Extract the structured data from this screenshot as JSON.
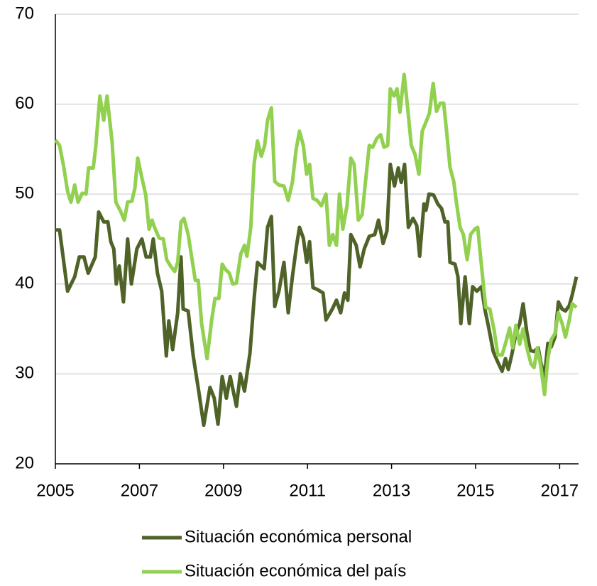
{
  "chart_data": {
    "type": "line",
    "xlim": [
      2005,
      2017.45
    ],
    "xticks": [
      2005,
      2007,
      2009,
      2011,
      2013,
      2015,
      2017
    ],
    "ylim": [
      20,
      70
    ],
    "yticks": [
      20,
      30,
      40,
      50,
      60,
      70
    ],
    "grid": true,
    "series": [
      {
        "name": "Situación económica personal",
        "color": "#4f6228",
        "x": [
          2005.0,
          2005.1,
          2005.29,
          2005.46,
          2005.57,
          2005.68,
          2005.78,
          2005.95,
          2006.03,
          2006.15,
          2006.25,
          2006.32,
          2006.39,
          2006.45,
          2006.52,
          2006.62,
          2006.72,
          2006.81,
          2006.94,
          2007.06,
          2007.16,
          2007.26,
          2007.33,
          2007.43,
          2007.53,
          2007.64,
          2007.7,
          2007.79,
          2007.91,
          2007.99,
          2008.04,
          2008.16,
          2008.28,
          2008.41,
          2008.53,
          2008.68,
          2008.78,
          2008.87,
          2008.97,
          2009.07,
          2009.16,
          2009.31,
          2009.4,
          2009.5,
          2009.63,
          2009.73,
          2009.81,
          2009.97,
          2010.05,
          2010.14,
          2010.22,
          2010.32,
          2010.44,
          2010.54,
          2010.64,
          2010.74,
          2010.81,
          2010.9,
          2010.98,
          2011.05,
          2011.13,
          2011.23,
          2011.37,
          2011.44,
          2011.59,
          2011.69,
          2011.79,
          2011.88,
          2011.96,
          2012.03,
          2012.16,
          2012.25,
          2012.35,
          2012.47,
          2012.6,
          2012.69,
          2012.8,
          2012.89,
          2012.97,
          2013.07,
          2013.16,
          2013.23,
          2013.31,
          2013.4,
          2013.51,
          2013.6,
          2013.67,
          2013.77,
          2013.82,
          2013.89,
          2014.0,
          2014.1,
          2014.19,
          2014.27,
          2014.34,
          2014.39,
          2014.51,
          2014.58,
          2014.65,
          2014.75,
          2014.85,
          2014.93,
          2015.03,
          2015.14,
          2015.22,
          2015.31,
          2015.42,
          2015.51,
          2015.63,
          2015.71,
          2015.78,
          2015.86,
          2015.96,
          2016.05,
          2016.13,
          2016.22,
          2016.3,
          2016.39,
          2016.49,
          2016.55,
          2016.64,
          2016.72,
          2016.8,
          2016.89,
          2016.97,
          2017.06,
          2017.14,
          2017.23,
          2017.3,
          2017.4
        ],
        "values": [
          46,
          46,
          39.2,
          40.8,
          43,
          43,
          41.2,
          43,
          48,
          46.9,
          46.9,
          44.7,
          43.9,
          40,
          42,
          38,
          45,
          40,
          43.9,
          45,
          43,
          43,
          45,
          41.2,
          39.2,
          32,
          35.9,
          32.7,
          36.8,
          43,
          37.2,
          37,
          32,
          28.1,
          24.3,
          28.5,
          27.3,
          24.4,
          29.7,
          27.3,
          29.7,
          26.4,
          30,
          28.1,
          32.3,
          38.4,
          42.4,
          41.7,
          46.3,
          47.5,
          37.5,
          39.2,
          42.4,
          36.8,
          40.8,
          44.3,
          46.3,
          45.1,
          42.4,
          44.7,
          39.6,
          39.4,
          39,
          36,
          37.2,
          38.2,
          36.8,
          39,
          38.2,
          45.5,
          44.3,
          41.9,
          43.9,
          45.3,
          45.5,
          47.1,
          44.5,
          45.9,
          53.3,
          50.9,
          52.9,
          51.3,
          53.3,
          46.3,
          47.3,
          46.5,
          43.1,
          48.9,
          48.2,
          50,
          49.9,
          48.9,
          48.4,
          46.9,
          46.9,
          42.4,
          42.2,
          40.8,
          35.6,
          40.8,
          35.6,
          39.7,
          39.2,
          39.7,
          37.2,
          35.2,
          32.5,
          31.5,
          30.3,
          31.7,
          30.5,
          32.1,
          34.5,
          35.6,
          37.8,
          34.6,
          32.6,
          32.5,
          32.9,
          31.3,
          29.7,
          33.4,
          33,
          34.1,
          38,
          37.2,
          37,
          37.6,
          38.8,
          40.8
        ]
      },
      {
        "name": "Situación económica del país",
        "color": "#92d050",
        "x": [
          2005.0,
          2005.1,
          2005.2,
          2005.29,
          2005.37,
          2005.46,
          2005.54,
          2005.64,
          2005.73,
          2005.79,
          2005.9,
          2005.96,
          2006.06,
          2006.15,
          2006.23,
          2006.35,
          2006.44,
          2006.55,
          2006.64,
          2006.72,
          2006.82,
          2006.89,
          2006.96,
          2007.06,
          2007.15,
          2007.23,
          2007.3,
          2007.36,
          2007.47,
          2007.57,
          2007.65,
          2007.74,
          2007.84,
          2007.91,
          2007.99,
          2008.06,
          2008.16,
          2008.24,
          2008.33,
          2008.4,
          2008.48,
          2008.61,
          2008.72,
          2008.8,
          2008.89,
          2008.97,
          2009.05,
          2009.14,
          2009.22,
          2009.31,
          2009.41,
          2009.5,
          2009.56,
          2009.65,
          2009.73,
          2009.81,
          2009.9,
          2009.98,
          2010.05,
          2010.14,
          2010.22,
          2010.32,
          2010.44,
          2010.54,
          2010.64,
          2010.73,
          2010.81,
          2010.9,
          2010.98,
          2011.05,
          2011.13,
          2011.23,
          2011.33,
          2011.44,
          2011.52,
          2011.6,
          2011.69,
          2011.76,
          2011.84,
          2011.94,
          2012.03,
          2012.11,
          2012.21,
          2012.3,
          2012.38,
          2012.47,
          2012.55,
          2012.65,
          2012.74,
          2012.82,
          2012.91,
          2012.97,
          2013.06,
          2013.13,
          2013.2,
          2013.3,
          2013.38,
          2013.47,
          2013.56,
          2013.65,
          2013.73,
          2013.82,
          2013.9,
          2013.99,
          2014.07,
          2014.16,
          2014.24,
          2014.31,
          2014.39,
          2014.48,
          2014.54,
          2014.63,
          2014.71,
          2014.8,
          2014.88,
          2014.98,
          2015.05,
          2015.15,
          2015.24,
          2015.34,
          2015.44,
          2015.53,
          2015.63,
          2015.73,
          2015.81,
          2015.88,
          2015.96,
          2016.05,
          2016.13,
          2016.22,
          2016.32,
          2016.39,
          2016.47,
          2016.55,
          2016.64,
          2016.72,
          2016.8,
          2016.89,
          2016.97,
          2017.06,
          2017.14,
          2017.23,
          2017.3,
          2017.4
        ],
        "values": [
          56,
          55.4,
          53,
          50.3,
          49.1,
          51,
          49.1,
          50.1,
          50,
          52.9,
          52.9,
          55.2,
          60.9,
          58.2,
          60.9,
          55.8,
          49.1,
          48.1,
          47.1,
          49.1,
          49.2,
          50.6,
          54,
          51.8,
          49.9,
          46.1,
          47.1,
          46.3,
          45.1,
          45,
          42.7,
          42,
          41.4,
          42.4,
          46.9,
          47.3,
          45.5,
          43.1,
          40.4,
          40.4,
          35.6,
          31.7,
          36,
          38.4,
          38.4,
          42.2,
          41.6,
          41.2,
          40,
          40.1,
          43.3,
          44.3,
          43.1,
          46.3,
          53.4,
          55.9,
          54.2,
          55.4,
          58.2,
          59.6,
          51.4,
          51,
          50.9,
          49.3,
          51.3,
          55,
          57,
          55.4,
          52.2,
          53.3,
          49.5,
          49.3,
          48.7,
          50,
          44.3,
          45.5,
          44.3,
          50,
          46.1,
          48.7,
          54,
          53.3,
          47.1,
          47.7,
          51.4,
          55.4,
          55.2,
          56.2,
          56.6,
          55.2,
          55.4,
          61.7,
          60.9,
          61.7,
          59.1,
          63.3,
          59.7,
          55.4,
          54.4,
          52.2,
          57,
          58,
          59,
          62.3,
          59.2,
          60.1,
          60.1,
          57,
          53,
          51.4,
          49.2,
          46.3,
          45.5,
          42.7,
          45.5,
          46.1,
          46.3,
          41.6,
          37.4,
          37.2,
          34.9,
          32.1,
          32.1,
          33.7,
          35.1,
          32.9,
          35.4,
          33.3,
          35,
          32.9,
          31.1,
          30.7,
          32.9,
          30.9,
          27.7,
          31.7,
          33.8,
          34.5,
          36.8,
          35.6,
          34.1,
          36,
          37.8,
          37.4
        ]
      }
    ]
  }
}
